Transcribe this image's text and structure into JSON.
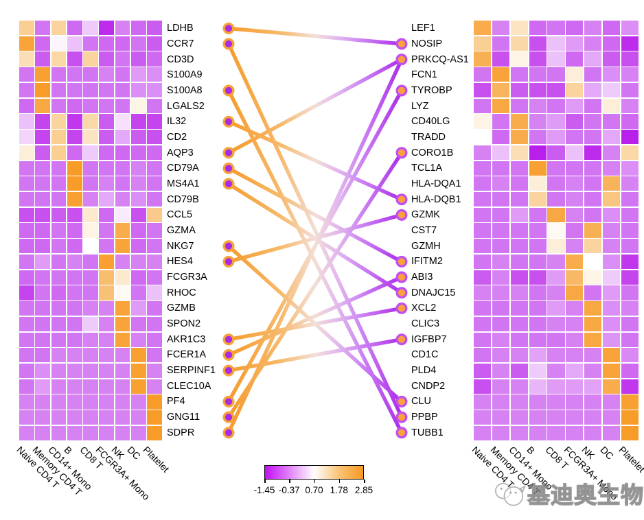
{
  "chart_data": {
    "type": "heatmap",
    "title": "",
    "cell_types": [
      "Naive CD4 T",
      "Memory CD4 T",
      "CD14+ Mono",
      "B",
      "CD8 T",
      "FCGR3A+ Mono",
      "NK",
      "DC",
      "Platelet"
    ],
    "value_domain": [
      -1.45,
      2.85
    ],
    "colorbar_ticks": [
      "-1.45",
      "-0.37",
      "0.70",
      "1.78",
      "2.85"
    ],
    "left_heatmap": {
      "genes": [
        "LDHB",
        "CCR7",
        "CD3D",
        "S100A9",
        "S100A8",
        "LGALS2",
        "IL32",
        "CD2",
        "AQP3",
        "CD79A",
        "MS4A1",
        "CD79B",
        "CCL5",
        "GZMA",
        "NKG7",
        "HES4",
        "FCGR3A",
        "RHOC",
        "GZMB",
        "SPON2",
        "AKR1C3",
        "FCER1A",
        "SERPINF1",
        "CLEC10A",
        "PF4",
        "GNG11",
        "SDPR"
      ],
      "values": [
        [
          1.6,
          -0.5,
          1.5,
          -0.6,
          0.2,
          -1.1,
          -0.4,
          -0.6,
          -0.7
        ],
        [
          2.6,
          -0.6,
          0.6,
          0.1,
          -0.5,
          -0.6,
          -0.6,
          -0.5,
          -0.7
        ],
        [
          1.3,
          -0.7,
          1.4,
          -0.8,
          1.5,
          -0.7,
          -0.5,
          -0.7,
          -0.6
        ],
        [
          -0.5,
          2.7,
          -0.5,
          -0.5,
          -0.5,
          -0.4,
          -0.5,
          -0.2,
          -0.3
        ],
        [
          -0.5,
          2.8,
          -0.5,
          -0.5,
          -0.5,
          -0.5,
          -0.5,
          -0.3,
          -0.3
        ],
        [
          -0.6,
          2.5,
          -0.5,
          -0.6,
          -0.5,
          -0.5,
          -0.5,
          0.9,
          -0.5
        ],
        [
          0.1,
          -0.9,
          1.5,
          -1.0,
          1.4,
          -0.7,
          0.4,
          -0.9,
          -0.9
        ],
        [
          0.3,
          -0.9,
          1.6,
          -0.9,
          1.2,
          -0.7,
          -0.1,
          -0.7,
          -0.8
        ],
        [
          1.0,
          -0.7,
          1.6,
          -0.6,
          0.2,
          -0.6,
          -0.6,
          -0.6,
          -0.6
        ],
        [
          -0.5,
          -0.5,
          -0.5,
          2.8,
          -0.5,
          -0.5,
          -0.5,
          -0.4,
          -0.5
        ],
        [
          -0.5,
          -0.5,
          -0.5,
          2.8,
          -0.5,
          -0.4,
          -0.5,
          -0.4,
          -0.5
        ],
        [
          -0.5,
          -0.5,
          -0.5,
          2.7,
          -0.4,
          -0.1,
          -0.4,
          -0.3,
          -0.5
        ],
        [
          -0.8,
          -0.8,
          -0.7,
          -0.8,
          1.1,
          -0.6,
          0.5,
          -0.8,
          1.7
        ],
        [
          -0.6,
          -0.6,
          -0.5,
          -0.6,
          0.9,
          -0.5,
          2.4,
          -0.6,
          -0.5
        ],
        [
          -0.6,
          -0.6,
          -0.5,
          -0.6,
          0.7,
          -0.5,
          2.6,
          -0.6,
          -0.5
        ],
        [
          -0.5,
          -0.2,
          -0.5,
          -0.4,
          -0.5,
          2.7,
          -0.4,
          -0.4,
          -0.4
        ],
        [
          -0.6,
          -0.5,
          -0.5,
          -0.5,
          -0.5,
          2.0,
          1.1,
          -0.6,
          -0.5
        ],
        [
          -0.9,
          -0.5,
          -0.6,
          -0.5,
          -0.5,
          1.9,
          0.8,
          -0.5,
          0.1
        ],
        [
          -0.5,
          -0.5,
          -0.5,
          -0.5,
          -0.4,
          -0.4,
          2.6,
          -0.2,
          -0.5
        ],
        [
          -0.5,
          -0.5,
          -0.5,
          -0.5,
          0.2,
          -0.4,
          2.6,
          -0.5,
          -0.5
        ],
        [
          -0.5,
          -0.5,
          -0.5,
          -0.5,
          -0.4,
          -0.4,
          2.6,
          -0.4,
          -0.5
        ],
        [
          -0.5,
          -0.5,
          -0.4,
          -0.4,
          -0.4,
          -0.4,
          -0.4,
          2.7,
          -0.5
        ],
        [
          -0.5,
          -0.3,
          -0.4,
          -0.4,
          -0.4,
          -0.4,
          -0.4,
          2.7,
          -0.4
        ],
        [
          -0.5,
          -0.2,
          -0.4,
          -0.4,
          -0.4,
          -0.4,
          -0.4,
          2.7,
          -0.4
        ],
        [
          -0.4,
          -0.4,
          -0.4,
          -0.4,
          -0.4,
          -0.4,
          -0.4,
          -0.4,
          2.8
        ],
        [
          -0.4,
          -0.4,
          -0.4,
          -0.4,
          -0.4,
          -0.4,
          -0.4,
          -0.4,
          2.8
        ],
        [
          -0.4,
          -0.4,
          -0.4,
          -0.4,
          -0.4,
          -0.4,
          -0.4,
          -0.4,
          2.8
        ]
      ]
    },
    "right_heatmap": {
      "genes": [
        "LEF1",
        "NOSIP",
        "PRKCQ-AS1",
        "FCN1",
        "TYROBP",
        "LYZ",
        "CD40LG",
        "TRADD",
        "CORO1B",
        "TCL1A",
        "HLA-DQA1",
        "HLA-DQB1",
        "GZMK",
        "CST7",
        "GZMH",
        "IFITM2",
        "ABI3",
        "DNAJC15",
        "XCL2",
        "CLIC3",
        "IGFBP7",
        "CD1C",
        "PLD4",
        "CNDP2",
        "CLU",
        "PPBP",
        "TUBB1"
      ],
      "values": [
        [
          2.4,
          -0.4,
          1.2,
          -0.6,
          -0.5,
          -0.6,
          -0.4,
          -0.6,
          -0.3
        ],
        [
          1.6,
          -0.5,
          1.4,
          -0.8,
          0.1,
          -0.2,
          -0.4,
          -0.6,
          -1.1
        ],
        [
          2.3,
          -0.8,
          0.9,
          -0.8,
          0.1,
          -0.6,
          -0.1,
          -0.7,
          -0.8
        ],
        [
          -0.5,
          2.6,
          -0.5,
          -0.5,
          -0.5,
          1.0,
          -0.5,
          -0.3,
          -0.4
        ],
        [
          -0.8,
          2.2,
          -0.7,
          -0.8,
          -0.8,
          1.5,
          -0.1,
          0.2,
          -0.5
        ],
        [
          -0.5,
          2.5,
          -0.5,
          -0.4,
          -0.5,
          -0.2,
          -0.5,
          1.0,
          -0.4
        ],
        [
          0.9,
          -0.5,
          2.4,
          -0.4,
          -0.2,
          -0.7,
          -0.5,
          -0.5,
          -0.6
        ],
        [
          0.7,
          -0.6,
          2.4,
          -0.5,
          -0.2,
          -0.5,
          -0.5,
          -0.1,
          -1.2
        ],
        [
          -0.4,
          0.1,
          1.3,
          -1.2,
          -0.7,
          0.1,
          -1.1,
          -0.4,
          1.4
        ],
        [
          -0.5,
          -0.5,
          -0.5,
          2.7,
          -0.5,
          -0.5,
          -0.5,
          -0.4,
          -0.3
        ],
        [
          -0.5,
          -0.4,
          -0.5,
          1.0,
          -0.5,
          -0.4,
          -0.5,
          2.2,
          -0.4
        ],
        [
          -0.5,
          -0.5,
          -0.5,
          1.5,
          -0.5,
          -0.4,
          -0.5,
          1.8,
          -0.5
        ],
        [
          -0.5,
          -0.5,
          -0.2,
          -0.5,
          2.5,
          -0.4,
          -0.5,
          -0.3,
          -0.5
        ],
        [
          -0.5,
          -0.5,
          -0.5,
          -0.5,
          0.8,
          -0.5,
          2.3,
          -0.4,
          -0.5
        ],
        [
          -0.5,
          -0.5,
          -0.5,
          -0.5,
          1.0,
          -0.4,
          1.5,
          -0.4,
          -0.5
        ],
        [
          -0.5,
          -0.4,
          -0.5,
          -0.5,
          -0.4,
          2.4,
          0.7,
          -0.3,
          -1.0
        ],
        [
          -0.7,
          -0.4,
          -0.8,
          -0.8,
          -0.2,
          2.1,
          0.9,
          0.2,
          -0.9
        ],
        [
          -0.4,
          -0.4,
          -0.4,
          -0.5,
          -0.4,
          2.5,
          -0.5,
          -0.2,
          -0.5
        ],
        [
          -0.5,
          -0.5,
          -0.5,
          -0.5,
          -0.2,
          -0.4,
          2.5,
          -0.3,
          -0.4
        ],
        [
          -0.5,
          -0.5,
          -0.5,
          -0.5,
          -0.4,
          -0.4,
          2.5,
          -0.3,
          -0.5
        ],
        [
          -0.5,
          -0.4,
          -0.5,
          -0.5,
          -0.5,
          -0.4,
          2.5,
          -0.25,
          -0.5
        ],
        [
          -0.5,
          -0.4,
          -0.4,
          -0.15,
          -0.4,
          -0.4,
          -0.4,
          2.6,
          -0.35
        ],
        [
          -0.7,
          -0.4,
          -0.7,
          0.2,
          -0.4,
          -0.1,
          -0.4,
          2.6,
          -0.6
        ],
        [
          -0.8,
          -0.4,
          -0.4,
          0.0,
          -0.2,
          -0.2,
          -0.15,
          2.4,
          -1.0
        ],
        [
          -0.4,
          -0.4,
          -0.4,
          -0.4,
          -0.4,
          -0.4,
          -0.4,
          -0.4,
          2.7
        ],
        [
          -0.4,
          -0.4,
          -0.4,
          -0.4,
          -0.4,
          -0.4,
          -0.4,
          -0.4,
          2.8
        ],
        [
          -0.4,
          -0.4,
          -0.4,
          -0.4,
          -0.4,
          -0.4,
          -0.4,
          -0.4,
          2.8
        ]
      ]
    },
    "left_dot_genes": [
      "LDHB",
      "CCR7",
      "S100A8",
      "IL32",
      "AQP3",
      "CD79A",
      "MS4A1",
      "NKG7",
      "HES4",
      "AKR1C3",
      "FCER1A",
      "SERPINF1",
      "PF4",
      "GNG11",
      "SDPR"
    ],
    "right_dot_genes": [
      "NOSIP",
      "PRKCQ-AS1",
      "TYROBP",
      "CORO1B",
      "HLA-DQB1",
      "GZMK",
      "IFITM2",
      "ABI3",
      "DNAJC15",
      "XCL2",
      "IGFBP7",
      "CLU",
      "PPBP",
      "TUBB1"
    ],
    "links": [
      {
        "left": "LDHB",
        "right": "NOSIP"
      },
      {
        "left": "CCR7",
        "right": "PPBP"
      },
      {
        "left": "S100A8",
        "right": "TUBB1"
      },
      {
        "left": "IL32",
        "right": "HLA-DQB1"
      },
      {
        "left": "AQP3",
        "right": "PRKCQ-AS1"
      },
      {
        "left": "CD79A",
        "right": "IFITM2"
      },
      {
        "left": "MS4A1",
        "right": "DNAJC15"
      },
      {
        "left": "NKG7",
        "right": "CLU"
      },
      {
        "left": "HES4",
        "right": "GZMK"
      },
      {
        "left": "AKR1C3",
        "right": "XCL2"
      },
      {
        "left": "FCER1A",
        "right": "ABI3"
      },
      {
        "left": "SERPINF1",
        "right": "IGFBP7"
      },
      {
        "left": "PF4",
        "right": "TYROBP"
      },
      {
        "left": "GNG11",
        "right": "CORO1B"
      },
      {
        "left": "SDPR",
        "right": "PRKCQ-AS1"
      }
    ]
  },
  "watermark": {
    "text": "基迪奥生物"
  },
  "colors": {
    "heat_negative": "#B000E8",
    "heat_mid": "#FFFFFF",
    "heat_positive": "#F89A25",
    "left_dot_fill": "#A82BE8",
    "left_dot_ring": "#F6A335",
    "right_dot_fill": "#F9A23B",
    "right_dot_ring": "#C24FF0",
    "link_orange": "#F59B2C",
    "link_purple": "#AA2BE8"
  }
}
